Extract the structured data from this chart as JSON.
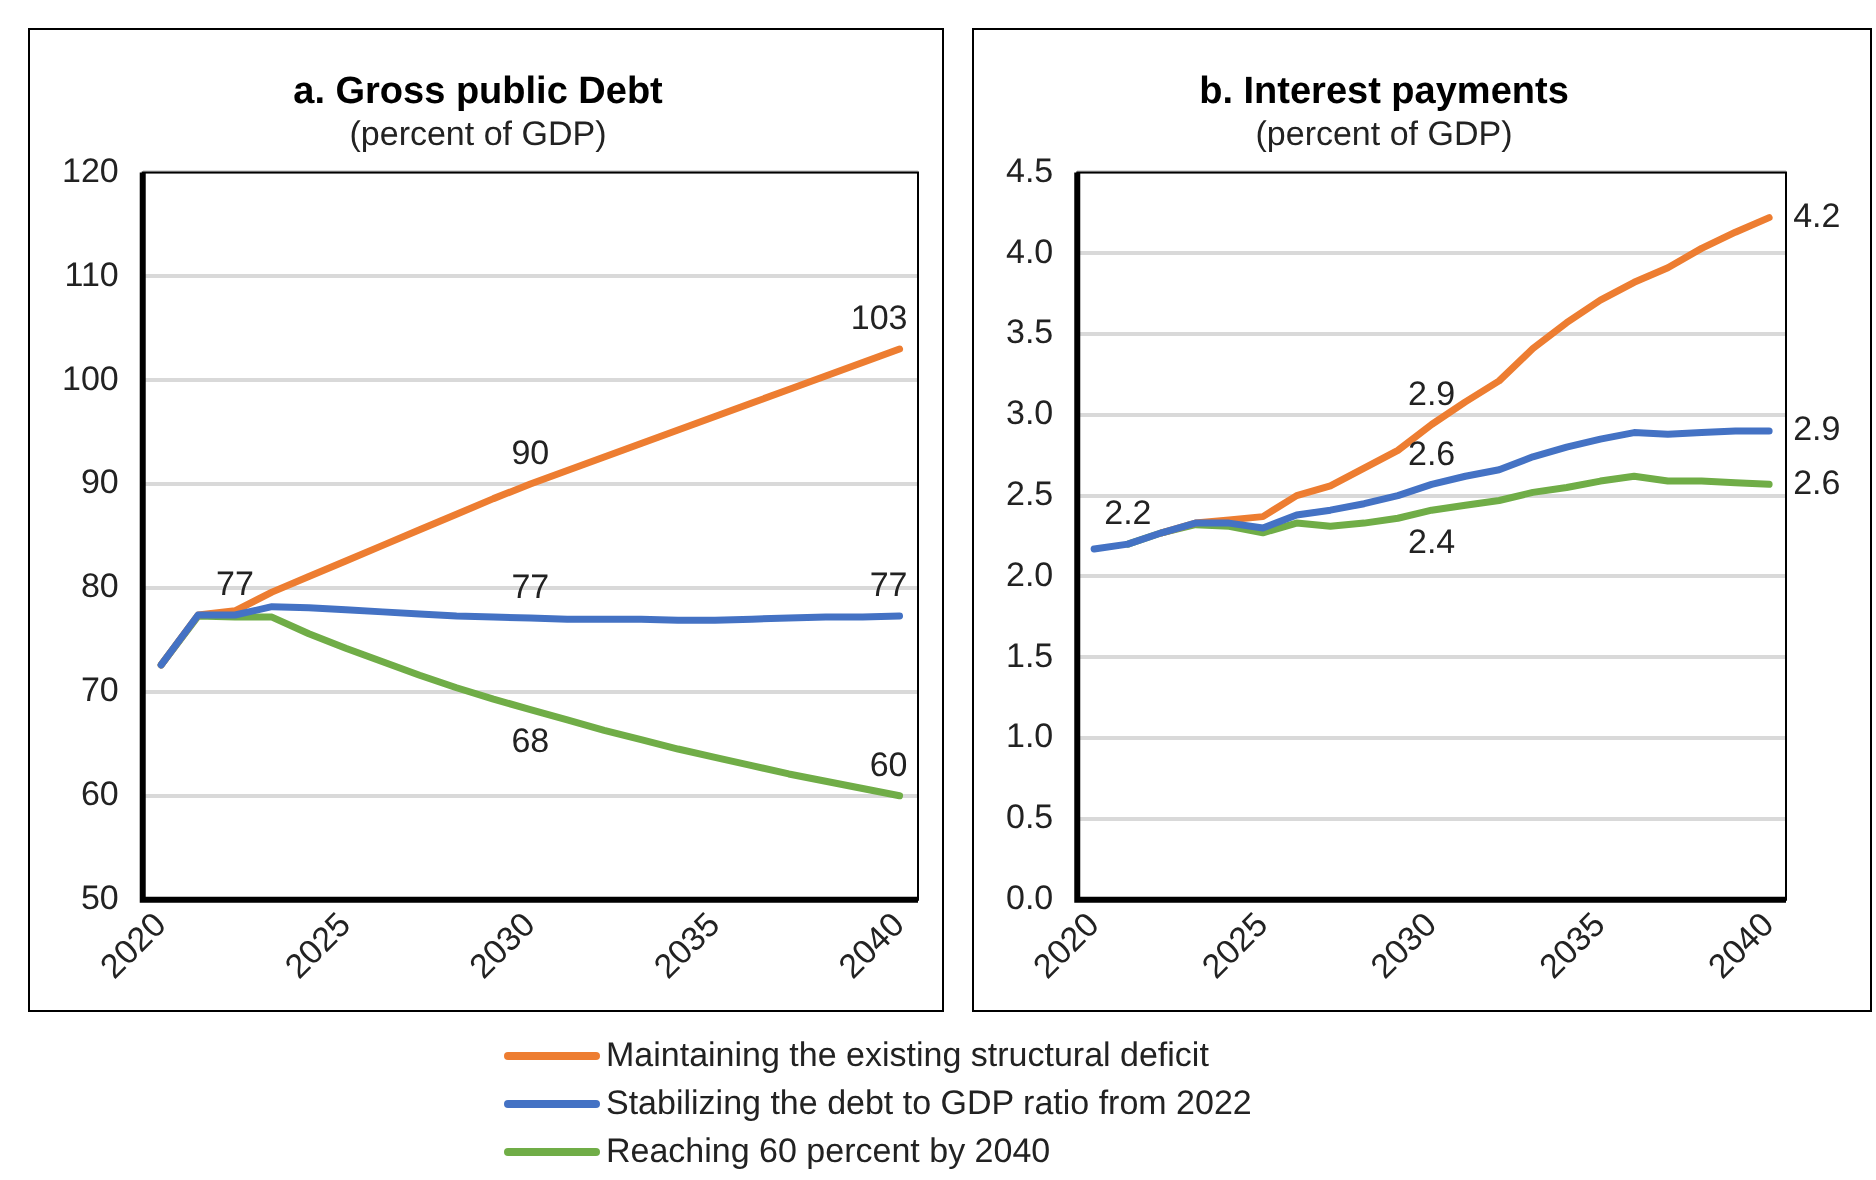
{
  "chart_data": [
    {
      "type": "line",
      "title": "a. Gross public Debt",
      "subtitle": "(percent of GDP)",
      "x": [
        2020,
        2021,
        2022,
        2023,
        2024,
        2025,
        2026,
        2027,
        2028,
        2029,
        2030,
        2031,
        2032,
        2033,
        2034,
        2035,
        2036,
        2037,
        2038,
        2039,
        2040
      ],
      "xlim": [
        2019.5,
        2040.5
      ],
      "xticks": [
        2020,
        2025,
        2030,
        2035,
        2040
      ],
      "ylim": [
        50,
        120
      ],
      "yticks": [
        50,
        60,
        70,
        80,
        90,
        100,
        110,
        120
      ],
      "grid": "y",
      "legend": "bottom",
      "line_style": "solid",
      "marker": "none",
      "series": [
        {
          "name": "Maintaining the existing structural deficit",
          "color": "#ed7d31",
          "values": [
            72.6,
            77.4,
            77.8,
            79.6,
            81.1,
            82.6,
            84.1,
            85.6,
            87.1,
            88.6,
            90,
            91.3,
            92.6,
            93.9,
            95.2,
            96.5,
            97.8,
            99.1,
            100.4,
            101.7,
            103
          ],
          "value_labels": [
            null,
            null,
            null,
            null,
            null,
            null,
            null,
            null,
            null,
            null,
            "90",
            null,
            null,
            null,
            null,
            null,
            null,
            null,
            null,
            null,
            "103"
          ]
        },
        {
          "name": "Stabilizing the debt to GDP ratio from 2022",
          "color": "#4472c4",
          "values": [
            72.6,
            77.4,
            77.4,
            78.2,
            78.1,
            77.9,
            77.7,
            77.5,
            77.3,
            77.2,
            77.1,
            77.0,
            77.0,
            77.0,
            76.9,
            76.9,
            77.0,
            77.1,
            77.2,
            77.2,
            77.3
          ],
          "value_labels": [
            null,
            null,
            "77",
            null,
            null,
            null,
            null,
            null,
            null,
            null,
            "77",
            null,
            null,
            null,
            null,
            null,
            null,
            null,
            null,
            null,
            "77"
          ]
        },
        {
          "name": "Reaching 60 percent by 2040",
          "color": "#70ad47",
          "values": [
            72.6,
            77.3,
            77.2,
            77.2,
            75.6,
            74.2,
            72.9,
            71.6,
            70.4,
            69.3,
            68.3,
            67.3,
            66.3,
            65.4,
            64.5,
            63.7,
            62.9,
            62.1,
            61.4,
            60.7,
            60
          ],
          "value_labels": [
            null,
            null,
            null,
            null,
            null,
            null,
            null,
            null,
            null,
            null,
            "68",
            null,
            null,
            null,
            null,
            null,
            null,
            null,
            null,
            null,
            "60"
          ]
        }
      ]
    },
    {
      "type": "line",
      "title": "b. Interest payments",
      "subtitle": "(percent of GDP)",
      "x": [
        2020,
        2021,
        2022,
        2023,
        2024,
        2025,
        2026,
        2027,
        2028,
        2029,
        2030,
        2031,
        2032,
        2033,
        2034,
        2035,
        2036,
        2037,
        2038,
        2039,
        2040
      ],
      "xlim": [
        2019.5,
        2040.5
      ],
      "xticks": [
        2020,
        2025,
        2030,
        2035,
        2040
      ],
      "ylim": [
        0,
        4.5
      ],
      "yticks": [
        {
          "value": 0,
          "label": "0.0"
        },
        0.5,
        {
          "value": 1,
          "label": "1.0"
        },
        1.5,
        {
          "value": 2,
          "label": "2.0"
        },
        2.5,
        {
          "value": 3,
          "label": "3.0"
        },
        3.5,
        {
          "value": 4,
          "label": "4.0"
        },
        4.5
      ],
      "grid": "y",
      "line_style": "solid",
      "marker": "none",
      "series": [
        {
          "color": "#ed7d31",
          "values": [
            null,
            null,
            2.27,
            2.33,
            2.35,
            2.37,
            2.5,
            2.56,
            2.67,
            2.78,
            2.94,
            3.08,
            3.21,
            3.41,
            3.57,
            3.71,
            3.82,
            3.91,
            4.03,
            4.13,
            4.22
          ],
          "value_labels": [
            null,
            null,
            null,
            null,
            null,
            null,
            null,
            null,
            null,
            null,
            "2.9",
            null,
            null,
            null,
            null,
            null,
            null,
            null,
            null,
            null,
            "4.2"
          ]
        },
        {
          "color": "#4472c4",
          "values": [
            2.17,
            2.2,
            2.27,
            2.33,
            2.33,
            2.3,
            2.38,
            2.41,
            2.45,
            2.5,
            2.57,
            2.62,
            2.66,
            2.74,
            2.8,
            2.85,
            2.89,
            2.88,
            2.89,
            2.9,
            2.9
          ],
          "value_labels": [
            null,
            "2.2",
            null,
            null,
            null,
            null,
            null,
            null,
            null,
            null,
            "2.6",
            null,
            null,
            null,
            null,
            null,
            null,
            null,
            null,
            null,
            "2.9"
          ]
        },
        {
          "color": "#70ad47",
          "values": [
            null,
            2.2,
            2.27,
            2.32,
            2.31,
            2.27,
            2.33,
            2.31,
            2.33,
            2.36,
            2.41,
            2.44,
            2.47,
            2.52,
            2.55,
            2.59,
            2.62,
            2.59,
            2.59,
            2.58,
            2.57
          ],
          "value_labels": [
            null,
            null,
            null,
            null,
            null,
            null,
            null,
            null,
            null,
            null,
            "2.4",
            null,
            null,
            null,
            null,
            null,
            null,
            null,
            null,
            null,
            "2.6"
          ]
        }
      ]
    }
  ]
}
